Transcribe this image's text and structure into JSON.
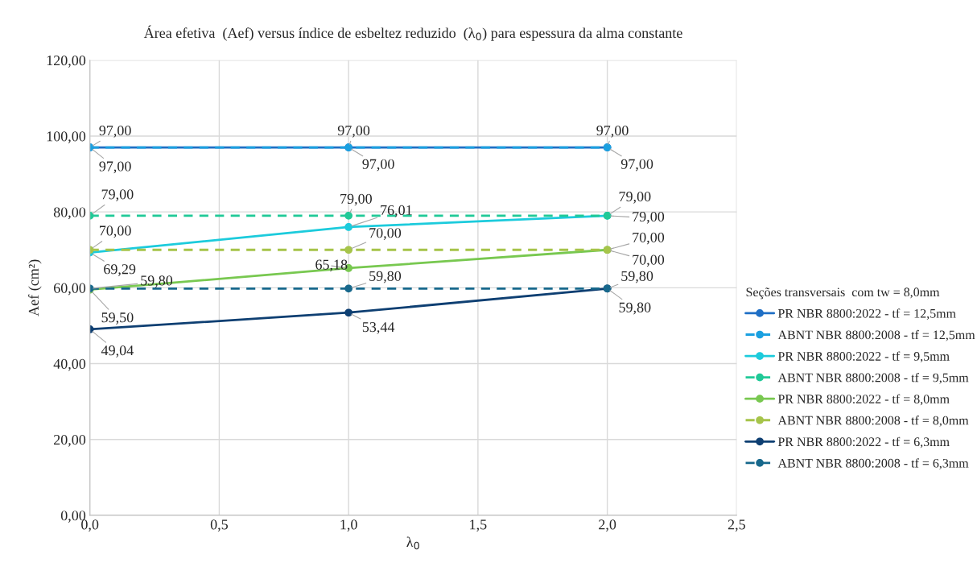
{
  "chart_data": {
    "type": "line",
    "title": "Área efetiva  (Aef) versus índice de esbeltez reduzido  (λ$_{0}$) para espessura da alma constante",
    "xlabel": "λ$_{0}$",
    "ylabel": "Aef (cm²)",
    "legend_title": "Seções transversais  com tw = 8,0mm",
    "x": [
      0,
      1,
      2
    ],
    "xlim": [
      0,
      2.5
    ],
    "xticks": [
      {
        "value": 0,
        "label": "0,0"
      },
      {
        "value": 0.5,
        "label": "0,5"
      },
      {
        "value": 1,
        "label": "1,0"
      },
      {
        "value": 1.5,
        "label": "1,5"
      },
      {
        "value": 2,
        "label": "2,0"
      },
      {
        "value": 2.5,
        "label": "2,5"
      }
    ],
    "ylim": [
      0,
      120
    ],
    "yticks": [
      {
        "value": 0,
        "label": "0,00"
      },
      {
        "value": 20,
        "label": "20,00"
      },
      {
        "value": 40,
        "label": "40,00"
      },
      {
        "value": 60,
        "label": "60,00"
      },
      {
        "value": 80,
        "label": "80,00"
      },
      {
        "value": 100,
        "label": "100,00"
      },
      {
        "value": 120,
        "label": "120,00"
      }
    ],
    "grid": true,
    "legend": "right",
    "marker": "circle",
    "series": [
      {
        "name": "PR NBR 8800:2022 - tf = 12,5mm",
        "color": "#1f6fc5",
        "line_style": "solid",
        "values": [
          97,
          97,
          97
        ],
        "value_labels": [
          "97,00",
          "97,00",
          "97,00"
        ]
      },
      {
        "name": "ABNT NBR 8800:2008 - tf = 12,5mm",
        "color": "#1aa0e0",
        "line_style": "dashed",
        "values": [
          97,
          97,
          97
        ],
        "value_labels": [
          "97,00",
          "97,00",
          "97,00"
        ]
      },
      {
        "name": "PR NBR 8800:2022 - tf = 9,5mm",
        "color": "#1ccbdc",
        "line_style": "solid",
        "values": [
          69.29,
          76.01,
          79.0
        ],
        "value_labels": [
          "69,29",
          "76,01",
          "79,00"
        ]
      },
      {
        "name": "ABNT NBR 8800:2008 - tf = 9,5mm",
        "color": "#20c997",
        "line_style": "dashed",
        "values": [
          79,
          79,
          79
        ],
        "value_labels": [
          "79,00",
          "79,00",
          "79,00"
        ]
      },
      {
        "name": "PR NBR 8800:2022 - tf = 8,0mm",
        "color": "#78c850",
        "line_style": "solid",
        "values": [
          59.5,
          65.18,
          70.0
        ],
        "value_labels": [
          "59,50",
          "65,18",
          "70,00"
        ]
      },
      {
        "name": "ABNT NBR 8800:2008 - tf = 8,0mm",
        "color": "#a6c44a",
        "line_style": "dashed",
        "values": [
          70,
          70,
          70
        ],
        "value_labels": [
          "70,00",
          "70,00",
          "70,00"
        ]
      },
      {
        "name": "PR NBR 8800:2022 - tf = 6,3mm",
        "color": "#0e3f72",
        "line_style": "solid",
        "values": [
          49.04,
          53.44,
          59.8
        ],
        "value_labels": [
          "49,04",
          "53,44",
          "59,80"
        ]
      },
      {
        "name": "ABNT NBR 8800:2008 - tf = 6,3mm",
        "color": "#17688c",
        "line_style": "dashed",
        "values": [
          59.8,
          59.8,
          59.8
        ],
        "value_labels": [
          "59,80",
          "59,80",
          "59,80"
        ]
      }
    ]
  }
}
